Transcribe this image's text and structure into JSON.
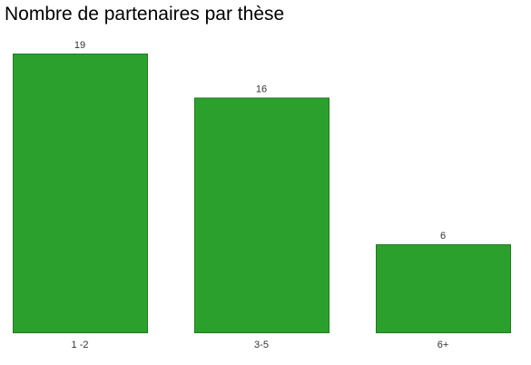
{
  "chart_data": {
    "type": "bar",
    "title": "Nombre de partenaires par thèse",
    "categories": [
      "1 -2",
      "3-5",
      "6+"
    ],
    "values": [
      19,
      16,
      6
    ],
    "ylim": [
      0,
      19
    ],
    "grid": false,
    "legend": "none",
    "colors": {
      "bar_fill": "#2ca02c",
      "bar_stroke": "#1f7a1f",
      "text": "#333333"
    }
  }
}
